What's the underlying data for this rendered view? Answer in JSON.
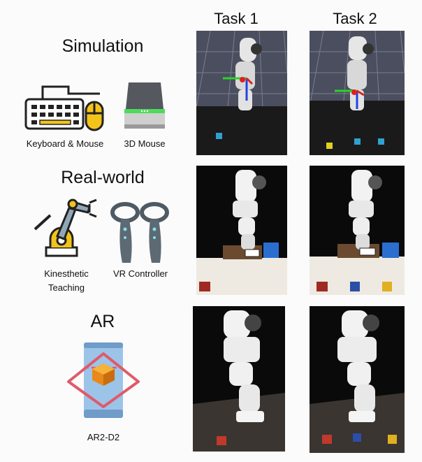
{
  "columns": [
    "Task 1",
    "Task 2"
  ],
  "rows": [
    {
      "title": "Simulation",
      "devices": [
        {
          "label": "Keyboard & Mouse",
          "icon": "keyboard-mouse-icon"
        },
        {
          "label": "3D Mouse",
          "icon": "3d-mouse-icon"
        }
      ]
    },
    {
      "title": "Real-world",
      "devices": [
        {
          "label": "Kinesthetic Teaching",
          "icon": "robot-arm-icon"
        },
        {
          "label": "VR Controller",
          "icon": "vr-controller-icon"
        }
      ]
    },
    {
      "title": "AR",
      "devices": [
        {
          "label": "AR2-D2",
          "icon": "ar-phone-icon"
        }
      ]
    }
  ],
  "colors": {
    "sim_background": "#4a4e5e",
    "real_background": "#0a0a0a",
    "cube_red": "#c0392b",
    "cube_blue": "#2b4fa8",
    "cube_yellow": "#e0b020",
    "ar_accent": "#e05a6a",
    "ar_phone": "#9cc4e8"
  }
}
